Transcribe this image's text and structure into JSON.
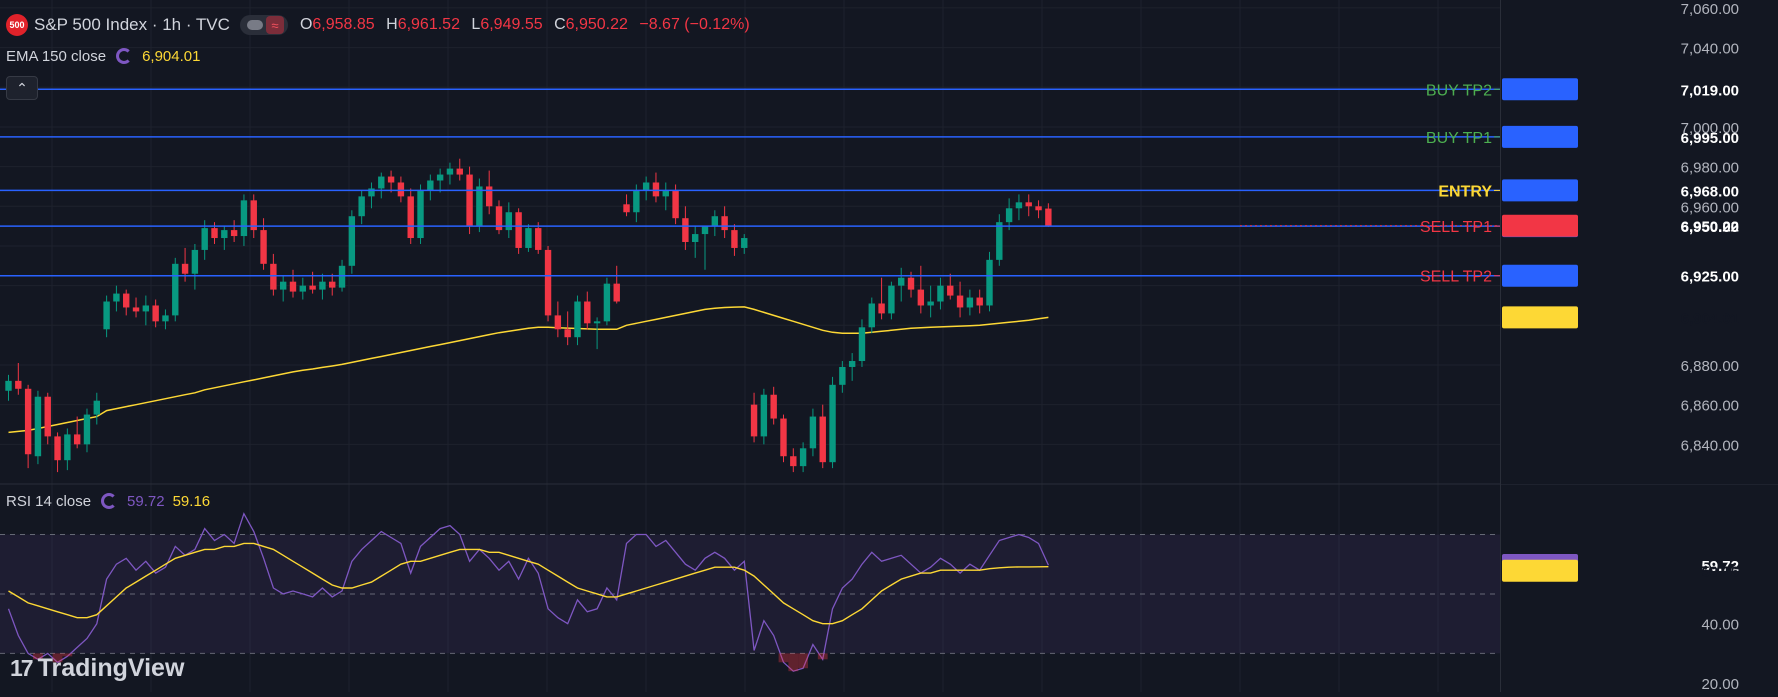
{
  "header": {
    "logo_text": "500",
    "symbol": "S&P 500 Index · 1h · TVC",
    "ohlc": [
      {
        "key": "O",
        "value": "6,958.85"
      },
      {
        "key": "H",
        "value": "6,961.52"
      },
      {
        "key": "L",
        "value": "6,949.55"
      },
      {
        "key": "C",
        "value": "6,950.22"
      }
    ],
    "change": "−8.67 (−0.12%)",
    "down_color": "#f23645"
  },
  "indicators": {
    "ema": {
      "name": "EMA 150 close",
      "value": "6,904.01",
      "color": "#fdd835"
    },
    "rsi": {
      "name": "RSI 14 close",
      "value": "59.72",
      "ma_value": "59.16",
      "color": "#7e57c2",
      "ma_color": "#fdd835"
    }
  },
  "branding": {
    "name": "TradingView"
  },
  "colors": {
    "background": "#131722",
    "grid": "#1e222d",
    "up": "#089981",
    "down": "#f23645",
    "level_line": "#2962ff"
  },
  "chart_data": [
    {
      "type": "candlestick",
      "timeframe": "1h",
      "y_ticks": [
        "7,060.00",
        "7,040.00",
        "7,000.00",
        "6,980.00",
        "6,960.00",
        "6,880.00",
        "6,860.00",
        "6,840.00"
      ],
      "ylim": [
        6820,
        7064
      ],
      "levels": [
        {
          "label": "BUY TP2",
          "price": 7019.0,
          "price_label": "7,019.00",
          "label_color": "#4caf50"
        },
        {
          "label": "BUY TP1",
          "price": 6995.0,
          "price_label": "6,995.00",
          "label_color": "#4caf50"
        },
        {
          "label": "ENTRY",
          "price": 6968.0,
          "price_label": "6,968.00",
          "label_color": "#fdd835"
        },
        {
          "label": "SELL TP1",
          "price": 6950.0,
          "price_label": "6,950.00",
          "label_color": "#f23645"
        },
        {
          "label": "SELL TP2",
          "price": 6925.0,
          "price_label": "6,925.00",
          "label_color": "#f23645"
        }
      ],
      "last_price": {
        "value": 6950.22,
        "label": "6,950.22"
      },
      "ema_last": {
        "value": 6904.01,
        "label": "6,904.01"
      },
      "candles": [
        [
          6867.0,
          6875.0,
          6862.0,
          6872.0
        ],
        [
          6872.0,
          6881.0,
          6865.0,
          6868.0
        ],
        [
          6868.0,
          6870.0,
          6828.0,
          6835.0
        ],
        [
          6834.0,
          6867.0,
          6830.0,
          6864.0
        ],
        [
          6864.0,
          6866.0,
          6840.0,
          6844.0
        ],
        [
          6844.0,
          6846.0,
          6826.0,
          6832.0
        ],
        [
          6832.0,
          6848.0,
          6827.0,
          6845.0
        ],
        [
          6845.0,
          6854.0,
          6838.0,
          6840.0
        ],
        [
          6840.0,
          6858.0,
          6836.0,
          6855.0
        ],
        [
          6855.0,
          6866.0,
          6850.0,
          6862.0
        ],
        [
          6898.0,
          6915.0,
          6894.0,
          6912.0
        ],
        [
          6912.0,
          6920.0,
          6907.0,
          6916.0
        ],
        [
          6916.0,
          6918.0,
          6905.0,
          6909.0
        ],
        [
          6909.0,
          6914.0,
          6904.0,
          6907.0
        ],
        [
          6907.0,
          6915.0,
          6900.0,
          6910.0
        ],
        [
          6910.0,
          6913.0,
          6899.0,
          6902.0
        ],
        [
          6902.0,
          6908.0,
          6898.0,
          6905.0
        ],
        [
          6905.0,
          6934.0,
          6902.0,
          6931.0
        ],
        [
          6931.0,
          6939.0,
          6922.0,
          6926.0
        ],
        [
          6926.0,
          6941.0,
          6918.0,
          6938.0
        ],
        [
          6938.0,
          6953.0,
          6933.0,
          6949.0
        ],
        [
          6949.0,
          6952.0,
          6941.0,
          6944.0
        ],
        [
          6944.0,
          6950.0,
          6938.0,
          6948.0
        ],
        [
          6948.0,
          6953.0,
          6942.0,
          6945.0
        ],
        [
          6945.0,
          6966.0,
          6940.0,
          6963.0
        ],
        [
          6963.0,
          6966.0,
          6944.0,
          6948.0
        ],
        [
          6948.0,
          6954.0,
          6928.0,
          6931.0
        ],
        [
          6931.0,
          6936.0,
          6915.0,
          6918.0
        ],
        [
          6918.0,
          6925.0,
          6912.0,
          6922.0
        ],
        [
          6922.0,
          6928.0,
          6914.0,
          6917.0
        ],
        [
          6917.0,
          6924.0,
          6913.0,
          6920.0
        ],
        [
          6920.0,
          6927.0,
          6916.0,
          6918.0
        ],
        [
          6918.0,
          6926.0,
          6913.0,
          6922.0
        ],
        [
          6922.0,
          6926.0,
          6915.0,
          6919.0
        ],
        [
          6919.0,
          6933.0,
          6917.0,
          6930.0
        ],
        [
          6930.0,
          6958.0,
          6926.0,
          6955.0
        ],
        [
          6955.0,
          6968.0,
          6951.0,
          6965.0
        ],
        [
          6965.0,
          6972.0,
          6959.0,
          6969.0
        ],
        [
          6969.0,
          6977.0,
          6964.0,
          6975.0
        ],
        [
          6975.0,
          6978.0,
          6967.0,
          6972.0
        ],
        [
          6972.0,
          6975.0,
          6962.0,
          6965.0
        ],
        [
          6965.0,
          6969.0,
          6941.0,
          6944.0
        ],
        [
          6944.0,
          6971.0,
          6941.0,
          6968.0
        ],
        [
          6968.0,
          6976.0,
          6963.0,
          6973.0
        ],
        [
          6973.0,
          6979.0,
          6967.0,
          6976.0
        ],
        [
          6976.0,
          6982.0,
          6971.0,
          6979.0
        ],
        [
          6979.0,
          6984.0,
          6973.0,
          6976.0
        ],
        [
          6976.0,
          6980.0,
          6946.0,
          6950.0
        ],
        [
          6950.0,
          6974.0,
          6947.0,
          6970.0
        ],
        [
          6970.0,
          6978.0,
          6956.0,
          6960.0
        ],
        [
          6960.0,
          6963.0,
          6946.0,
          6948.0
        ],
        [
          6948.0,
          6962.0,
          6944.0,
          6957.0
        ],
        [
          6957.0,
          6959.0,
          6936.0,
          6939.0
        ],
        [
          6939.0,
          6951.0,
          6937.0,
          6949.0
        ],
        [
          6949.0,
          6952.0,
          6936.0,
          6938.0
        ],
        [
          6938.0,
          6940.0,
          6902.0,
          6905.0
        ],
        [
          6905.0,
          6912.0,
          6894.0,
          6898.0
        ],
        [
          6898.0,
          6907.0,
          6890.0,
          6894.0
        ],
        [
          6894.0,
          6915.0,
          6890.0,
          6912.0
        ],
        [
          6912.0,
          6917.0,
          6898.0,
          6901.0
        ],
        [
          6901.0,
          6904.0,
          6888.0,
          6902.0
        ],
        [
          6902.0,
          6924.0,
          6900.0,
          6921.0
        ],
        [
          6921.0,
          6930.0,
          6911.0,
          6912.0
        ],
        [
          6961.0,
          6966.0,
          6955.0,
          6957.0
        ],
        [
          6957.0,
          6971.0,
          6952.0,
          6968.0
        ],
        [
          6968.0,
          6975.0,
          6963.0,
          6972.0
        ],
        [
          6972.0,
          6977.0,
          6962.0,
          6965.0
        ],
        [
          6965.0,
          6972.0,
          6958.0,
          6968.0
        ],
        [
          6968.0,
          6971.0,
          6951.0,
          6954.0
        ],
        [
          6954.0,
          6960.0,
          6938.0,
          6942.0
        ],
        [
          6942.0,
          6950.0,
          6934.0,
          6946.0
        ],
        [
          6946.0,
          6949.0,
          6928.0,
          6950.0
        ],
        [
          6950.0,
          6958.0,
          6945.0,
          6955.0
        ],
        [
          6955.0,
          6960.0,
          6944.0,
          6948.0
        ],
        [
          6948.0,
          6951.0,
          6935.0,
          6939.0
        ],
        [
          6939.0,
          6946.0,
          6936.0,
          6944.0
        ],
        [
          6860.0,
          6866.0,
          6841.0,
          6844.0
        ],
        [
          6844.0,
          6868.0,
          6840.0,
          6865.0
        ],
        [
          6865.0,
          6869.0,
          6850.0,
          6853.0
        ],
        [
          6853.0,
          6855.0,
          6831.0,
          6834.0
        ],
        [
          6834.0,
          6838.0,
          6826.0,
          6829.0
        ],
        [
          6829.0,
          6841.0,
          6826.0,
          6838.0
        ],
        [
          6838.0,
          6858.0,
          6834.0,
          6854.0
        ],
        [
          6854.0,
          6860.0,
          6828.0,
          6831.0
        ],
        [
          6831.0,
          6874.0,
          6828.0,
          6870.0
        ],
        [
          6870.0,
          6882.0,
          6866.0,
          6879.0
        ],
        [
          6879.0,
          6886.0,
          6872.0,
          6882.0
        ],
        [
          6882.0,
          6903.0,
          6879.0,
          6899.0
        ],
        [
          6899.0,
          6914.0,
          6896.0,
          6911.0
        ],
        [
          6911.0,
          6924.0,
          6903.0,
          6906.0
        ],
        [
          6906.0,
          6922.0,
          6903.0,
          6920.0
        ],
        [
          6920.0,
          6929.0,
          6912.0,
          6924.0
        ],
        [
          6924.0,
          6927.0,
          6914.0,
          6918.0
        ],
        [
          6918.0,
          6930.0,
          6906.0,
          6910.0
        ],
        [
          6910.0,
          6920.0,
          6904.0,
          6912.0
        ],
        [
          6912.0,
          6924.0,
          6908.0,
          6920.0
        ],
        [
          6920.0,
          6926.0,
          6913.0,
          6915.0
        ],
        [
          6915.0,
          6922.0,
          6904.0,
          6909.0
        ],
        [
          6909.0,
          6918.0,
          6905.0,
          6914.0
        ],
        [
          6914.0,
          6918.0,
          6906.0,
          6910.0
        ],
        [
          6910.0,
          6937.0,
          6907.0,
          6933.0
        ],
        [
          6933.0,
          6956.0,
          6930.0,
          6952.0
        ],
        [
          6952.0,
          6964.0,
          6948.0,
          6959.0
        ],
        [
          6959.0,
          6966.0,
          6953.0,
          6962.0
        ],
        [
          6962.0,
          6966.0,
          6955.0,
          6960.0
        ],
        [
          6960.0,
          6963.0,
          6954.0,
          6958.0
        ],
        [
          6958.85,
          6961.52,
          6949.55,
          6950.22
        ]
      ],
      "ema150": [
        6846.0,
        6846.5,
        6847.0,
        6848.0,
        6849.0,
        6850.0,
        6851.0,
        6852.0,
        6853.0,
        6854.0,
        6857.0,
        6858.0,
        6859.0,
        6860.0,
        6861.0,
        6862.0,
        6863.0,
        6864.0,
        6865.0,
        6866.0,
        6867.5,
        6868.5,
        6869.5,
        6870.5,
        6871.5,
        6872.5,
        6873.5,
        6874.5,
        6875.5,
        6876.5,
        6877.3,
        6878.0,
        6878.8,
        6879.5,
        6880.3,
        6881.3,
        6882.3,
        6883.3,
        6884.3,
        6885.3,
        6886.3,
        6887.3,
        6888.3,
        6889.3,
        6890.3,
        6891.3,
        6892.3,
        6893.3,
        6894.3,
        6895.3,
        6896.3,
        6897.0,
        6897.8,
        6898.5,
        6899.0,
        6899.0,
        6898.8,
        6898.6,
        6898.4,
        6898.2,
        6898.0,
        6898.0,
        6898.0,
        6900.0,
        6901.0,
        6902.0,
        6903.0,
        6904.0,
        6905.0,
        6906.0,
        6907.0,
        6908.0,
        6908.6,
        6909.0,
        6909.2,
        6909.3,
        6908.0,
        6906.5,
        6905.0,
        6903.5,
        6902.0,
        6900.5,
        6899.0,
        6897.5,
        6896.5,
        6896.0,
        6896.0,
        6896.0,
        6896.5,
        6897.0,
        6897.5,
        6898.0,
        6898.5,
        6898.8,
        6899.0,
        6899.2,
        6899.4,
        6899.6,
        6899.8,
        6900.0,
        6900.5,
        6901.0,
        6901.5,
        6902.0,
        6902.6,
        6903.3,
        6904.01
      ]
    },
    {
      "type": "line",
      "title": "RSI 14 close",
      "y_ticks": [
        "40.00",
        "20.00"
      ],
      "ylim": [
        17,
        87
      ],
      "bands": [
        70,
        50,
        30
      ],
      "series": [
        {
          "name": "RSI",
          "last_label": "59.72",
          "values": [
            45,
            36,
            30,
            28,
            30,
            27,
            29,
            32,
            35,
            40,
            55,
            60,
            62,
            58,
            61,
            57,
            59,
            66,
            63,
            65,
            72,
            68,
            70,
            67,
            77,
            71,
            62,
            52,
            50,
            51,
            50,
            49,
            52,
            49,
            51,
            61,
            65,
            68,
            71,
            69,
            67,
            57,
            66,
            69,
            72,
            73,
            70,
            61,
            65,
            62,
            58,
            61,
            55,
            62,
            57,
            45,
            42,
            40,
            48,
            44,
            45,
            52,
            48,
            67,
            70,
            70,
            66,
            68,
            64,
            60,
            58,
            62,
            64,
            62,
            58,
            61,
            31,
            41,
            36,
            27,
            24,
            25,
            33,
            28,
            45,
            52,
            55,
            60,
            64,
            61,
            62,
            63,
            60,
            57,
            59,
            62,
            60,
            57,
            60,
            58,
            63,
            68,
            69,
            70,
            69,
            67,
            59.72
          ]
        },
        {
          "name": "RSI-based MA",
          "last_label": "59.16",
          "values": [
            51,
            49,
            47,
            46,
            45,
            44,
            43,
            42,
            42,
            43,
            46,
            49,
            52,
            54,
            56,
            58,
            60,
            62,
            63,
            64,
            65,
            65,
            66,
            66,
            67,
            67,
            66,
            65,
            63,
            61,
            59,
            57,
            55,
            53,
            52,
            52,
            53,
            54,
            56,
            58,
            60,
            61,
            61,
            62,
            63,
            64,
            65,
            65,
            65,
            64,
            64,
            63,
            62,
            61,
            60,
            58,
            56,
            54,
            52,
            51,
            50,
            49,
            49,
            50,
            51,
            52,
            53,
            54,
            55,
            56,
            57,
            58,
            59,
            59,
            59,
            58,
            56,
            53,
            50,
            47,
            45,
            43,
            41,
            40,
            40,
            41,
            43,
            45,
            48,
            51,
            53,
            55,
            56,
            57,
            57,
            58,
            58,
            58,
            58,
            58,
            58.5,
            58.8,
            59.0,
            59.1,
            59.1,
            59.15,
            59.16
          ]
        }
      ]
    }
  ]
}
